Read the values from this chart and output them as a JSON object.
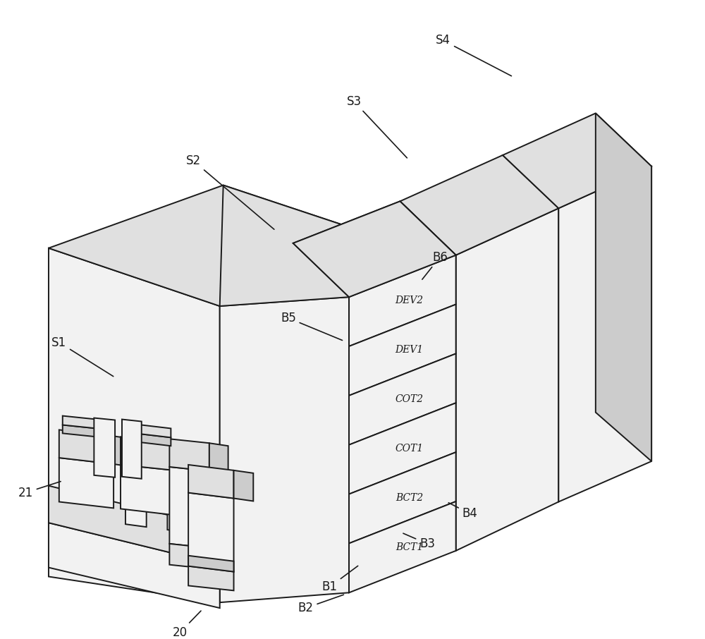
{
  "bg_color": "#ffffff",
  "line_color": "#1a1a1a",
  "lw": 1.4,
  "fill_white": "#ffffff",
  "fill_light": "#f2f2f2",
  "fill_mid": "#e0e0e0",
  "fill_dark": "#cccccc",
  "stack_labels": [
    "DEV2",
    "DEV1",
    "COT2",
    "COT1",
    "BCT2",
    "BCT1"
  ],
  "font_size_stack": 10,
  "font_size_label": 12
}
